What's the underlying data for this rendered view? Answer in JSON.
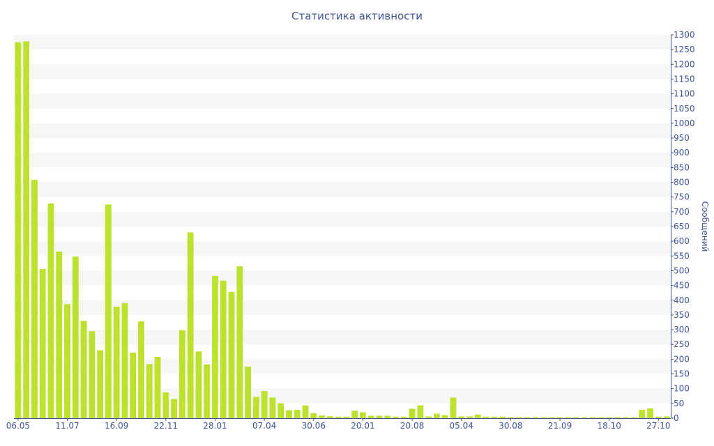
{
  "chart_data": {
    "type": "bar",
    "title": "Статистика активности",
    "ylabel": "Сообщений",
    "ylim": [
      0,
      1300
    ],
    "ytick_step": 50,
    "grid": "horizontal-bands",
    "colors": {
      "bar": "#bde22e",
      "text": "#3e5496",
      "band": "#f6f6f6",
      "axis": "#3e5496"
    },
    "values": [
      1275,
      1278,
      808,
      506,
      728,
      565,
      387,
      548,
      330,
      295,
      230,
      725,
      378,
      390,
      222,
      328,
      183,
      208,
      87,
      65,
      298,
      630,
      226,
      182,
      482,
      466,
      428,
      515,
      175,
      72,
      92,
      70,
      50,
      27,
      28,
      43,
      17,
      9,
      7,
      5,
      5,
      25,
      20,
      8,
      8,
      8,
      5,
      5,
      32,
      43,
      6,
      15,
      10,
      70,
      6,
      6,
      12,
      5,
      5,
      5,
      3,
      3,
      3,
      3,
      3,
      3,
      3,
      3,
      3,
      3,
      3,
      3,
      3,
      3,
      3,
      3,
      28,
      33,
      5,
      6
    ],
    "x_tick_labels": [
      {
        "index": 0,
        "label": "06.05"
      },
      {
        "index": 6,
        "label": "11.07"
      },
      {
        "index": 12,
        "label": "16.09"
      },
      {
        "index": 18,
        "label": "22.11"
      },
      {
        "index": 24,
        "label": "28.01"
      },
      {
        "index": 30,
        "label": "07.04"
      },
      {
        "index": 36,
        "label": "30.06"
      },
      {
        "index": 42,
        "label": "20.01"
      },
      {
        "index": 48,
        "label": "20.08"
      },
      {
        "index": 54,
        "label": "05.04"
      },
      {
        "index": 60,
        "label": "30.08"
      },
      {
        "index": 66,
        "label": "21.09"
      },
      {
        "index": 72,
        "label": "18.10"
      },
      {
        "index": 78,
        "label": "27.10"
      }
    ]
  }
}
